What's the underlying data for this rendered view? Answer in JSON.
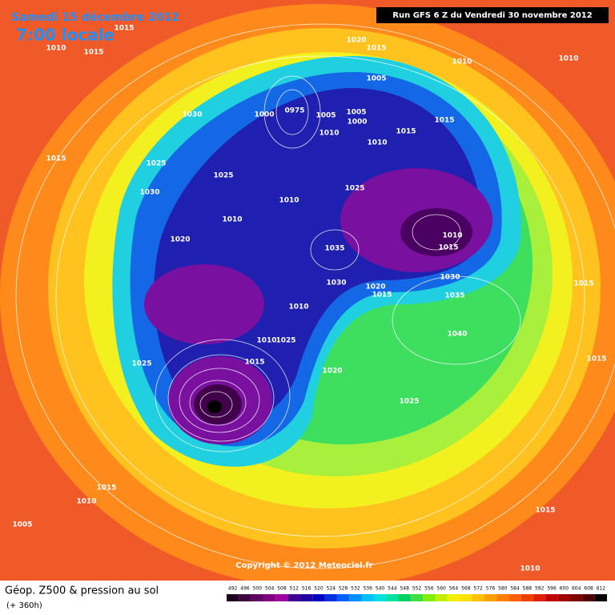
{
  "header": {
    "date": "Samedi 15 décembre 2012",
    "time": "7:00 locale",
    "run": "Run GFS 6 Z du Vendredi 30 novembre 2012"
  },
  "pressure_labels": [
    "1015",
    "1010",
    "1015",
    "1020",
    "1015",
    "1010",
    "1010",
    "1005",
    "1030",
    "1000",
    "0975",
    "1005",
    "1005",
    "1000",
    "1010",
    "1010",
    "1015",
    "1015",
    "1015",
    "1025",
    "1025",
    "1030",
    "1025",
    "1010",
    "1010",
    "1020",
    "1010",
    "1015",
    "1035",
    "1030",
    "1030",
    "1020",
    "1015",
    "1035",
    "1010",
    "1015",
    "1040",
    "1010",
    "1025",
    "1015",
    "1025",
    "1015",
    "1020",
    "1025",
    "1015",
    "1010",
    "1005",
    "1015",
    "1010"
  ],
  "copyright": "Copyright © 2012 Meteociel.fr",
  "footer": {
    "title": "Géop. Z500 & pression au sol",
    "subtitle": "(+ 360h)"
  },
  "legend": {
    "values": [
      492,
      496,
      500,
      504,
      508,
      512,
      516,
      520,
      524,
      528,
      532,
      536,
      540,
      544,
      548,
      552,
      556,
      560,
      564,
      568,
      572,
      576,
      580,
      584,
      588,
      592,
      596,
      600,
      604,
      608,
      612
    ],
    "colors": [
      "#200020",
      "#400040",
      "#600060",
      "#800080",
      "#a000a0",
      "#400090",
      "#2000a0",
      "#0000c0",
      "#0030e0",
      "#0060ff",
      "#0090ff",
      "#00c0ff",
      "#00e0e0",
      "#00e0a0",
      "#00d060",
      "#40e040",
      "#80f000",
      "#c0f000",
      "#f0f000",
      "#ffe000",
      "#ffc000",
      "#ffa000",
      "#ff8000",
      "#ff6000",
      "#f04000",
      "#e02000",
      "#c00000",
      "#a00000",
      "#800000",
      "#500000",
      "#000000"
    ]
  }
}
